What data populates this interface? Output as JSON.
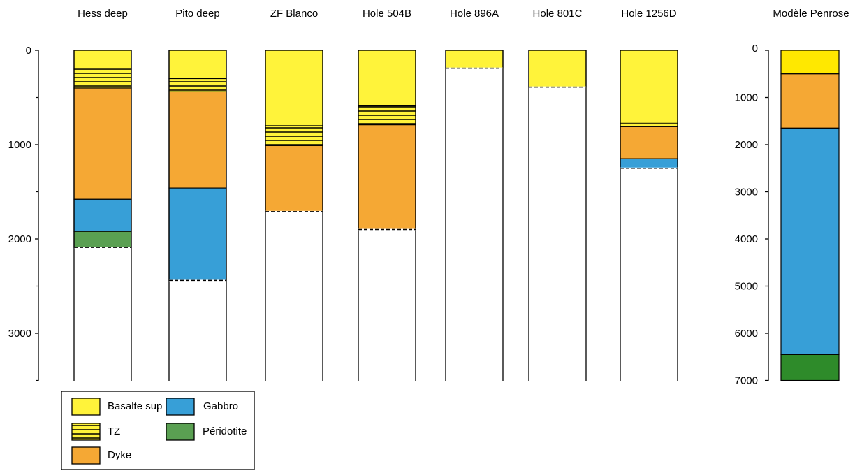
{
  "chart_data": [
    {
      "type": "bar",
      "subtype": "stacked-column",
      "ylabel": "",
      "ylim": [
        0,
        3500
      ],
      "y_inverted": true,
      "yticks": [
        "0",
        "1000",
        "2000",
        "3000"
      ],
      "columns": [
        {
          "name": "Hess deep",
          "segments": [
            {
              "layer": "basalte",
              "from": 0,
              "to": 200
            },
            {
              "layer": "tz",
              "from": 200,
              "to": 400
            },
            {
              "layer": "dyke",
              "from": 400,
              "to": 1580
            },
            {
              "layer": "gabbro",
              "from": 1580,
              "to": 1920
            },
            {
              "layer": "peridotite",
              "from": 1920,
              "to": 2090
            }
          ],
          "dashed_at": 2090
        },
        {
          "name": "Pito deep",
          "segments": [
            {
              "layer": "basalte",
              "from": 0,
              "to": 300
            },
            {
              "layer": "tz",
              "from": 300,
              "to": 440
            },
            {
              "layer": "dyke",
              "from": 440,
              "to": 1460
            },
            {
              "layer": "gabbro",
              "from": 1460,
              "to": 2440
            }
          ],
          "dashed_at": 2440
        },
        {
          "name": "ZF Blanco",
          "segments": [
            {
              "layer": "basalte",
              "from": 0,
              "to": 800
            },
            {
              "layer": "tz",
              "from": 800,
              "to": 1010
            },
            {
              "layer": "dyke",
              "from": 1010,
              "to": 1710
            }
          ],
          "dashed_at": 1710
        },
        {
          "name": "Hole 504B",
          "segments": [
            {
              "layer": "basalte",
              "from": 0,
              "to": 590
            },
            {
              "layer": "tz",
              "from": 590,
              "to": 790
            },
            {
              "layer": "dyke",
              "from": 790,
              "to": 1900
            }
          ],
          "dashed_at": 1900
        },
        {
          "name": "Hole 896A",
          "segments": [
            {
              "layer": "basalte",
              "from": 0,
              "to": 190
            }
          ],
          "dashed_at": 190
        },
        {
          "name": "Hole 801C",
          "segments": [
            {
              "layer": "basalte",
              "from": 0,
              "to": 390
            }
          ],
          "dashed_at": 390
        },
        {
          "name": "Hole 1256D",
          "segments": [
            {
              "layer": "basalte",
              "from": 0,
              "to": 760
            },
            {
              "layer": "tz",
              "from": 760,
              "to": 810
            },
            {
              "layer": "dyke",
              "from": 810,
              "to": 1150
            },
            {
              "layer": "gabbro",
              "from": 1150,
              "to": 1250
            }
          ],
          "dashed_at": 1250
        }
      ]
    },
    {
      "type": "bar",
      "subtype": "stacked-column",
      "ylim": [
        0,
        7000
      ],
      "y_inverted": true,
      "yticks": [
        "0",
        "1000",
        "2000",
        "3000",
        "4000",
        "5000",
        "6000",
        "7000"
      ],
      "columns": [
        {
          "name": "Modèle Penrose",
          "segments": [
            {
              "layer": "basalte",
              "from": 0,
              "to": 500
            },
            {
              "layer": "dyke",
              "from": 500,
              "to": 1650
            },
            {
              "layer": "gabbro",
              "from": 1650,
              "to": 6450
            },
            {
              "layer": "peridotite_penrose",
              "from": 6450,
              "to": 7000
            }
          ]
        }
      ]
    }
  ],
  "legend": {
    "items": [
      {
        "key": "basalte",
        "label": "Basalte sup"
      },
      {
        "key": "gabbro",
        "label": "Gabbro"
      },
      {
        "key": "tz",
        "label": "TZ"
      },
      {
        "key": "peridotite",
        "label": "Péridotite"
      },
      {
        "key": "dyke",
        "label": "Dyke"
      }
    ]
  },
  "colors": {
    "basalte": "#fff33a",
    "basalte_penrose": "#ffe800",
    "tz": "#fff33a",
    "dyke": "#f5a834",
    "gabbro": "#379fd7",
    "peridotite": "#5aa052",
    "peridotite_penrose": "#2e8b2a",
    "outline": "#000000"
  }
}
